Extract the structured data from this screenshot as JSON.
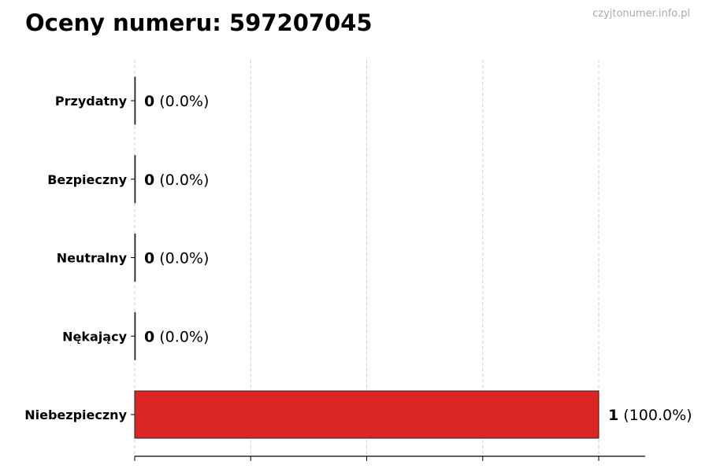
{
  "chart_data": {
    "type": "bar",
    "orientation": "horizontal",
    "title": "Oceny numeru: 597207045",
    "watermark": "czyjtonumer.info.pl",
    "categories": [
      "Przydatny",
      "Bezpieczny",
      "Neutralny",
      "Nękający",
      "Niebezpieczny"
    ],
    "values": [
      0,
      0,
      0,
      0,
      1
    ],
    "labels": [
      "(0.0%)",
      "(0.0%)",
      "(0.0%)",
      "(0.0%)",
      "(100.0%)"
    ],
    "xlim": [
      0,
      1.1
    ],
    "grid": true,
    "grid_step": 0.25,
    "bar_color": "#dc2626",
    "xlabel": "",
    "ylabel": ""
  }
}
